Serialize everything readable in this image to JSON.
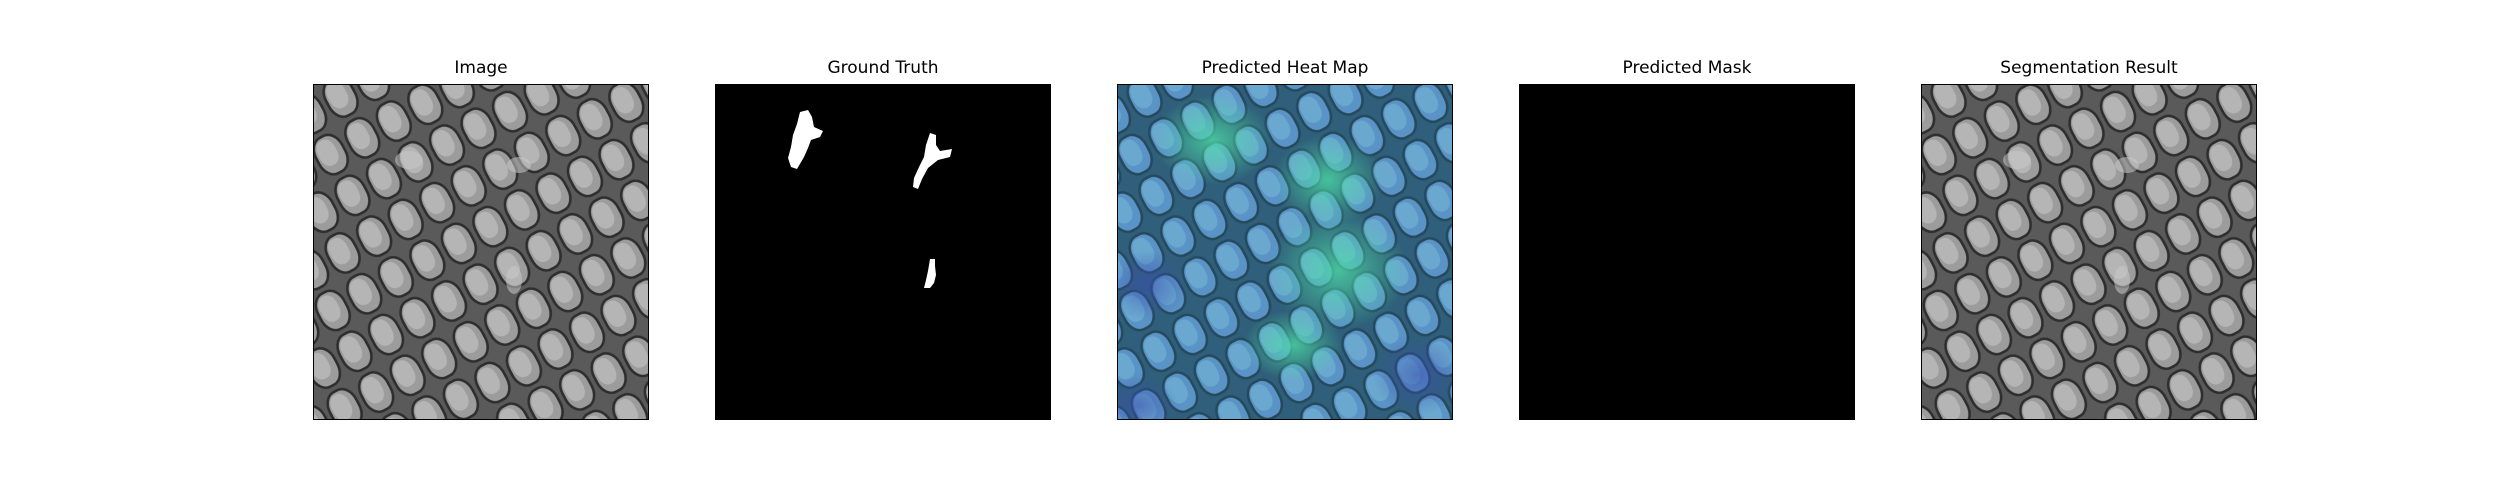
{
  "panels": {
    "image": {
      "title": "Image"
    },
    "ground_truth": {
      "title": "Ground Truth"
    },
    "heat_map": {
      "title": "Predicted Heat Map"
    },
    "mask": {
      "title": "Predicted Mask"
    },
    "segmentation": {
      "title": "Segmentation Result"
    }
  },
  "colors": {
    "background": "#ffffff",
    "frame": "#000000",
    "mask_bg": "#000000",
    "mask_fg": "#ffffff",
    "texture_light": "#9a9a9a",
    "texture_dark": "#3a3a3a",
    "heat_low": "#4a7fc0",
    "heat_high": "#3fc9a0"
  }
}
